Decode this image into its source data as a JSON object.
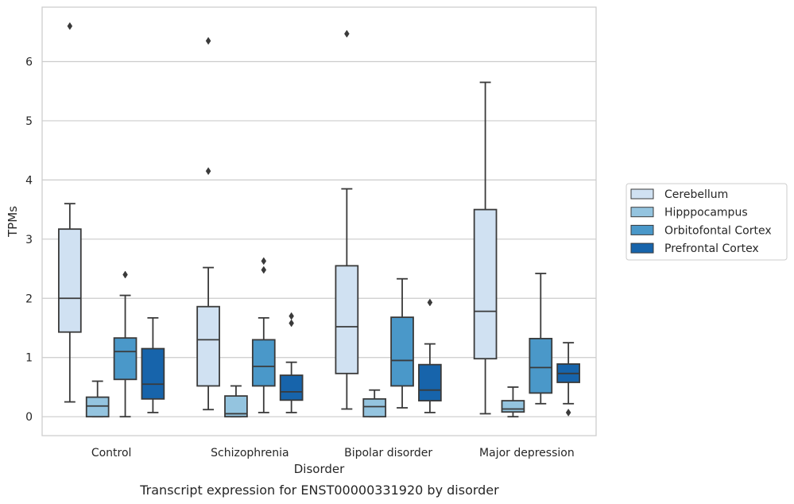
{
  "chart_data": {
    "type": "box",
    "title": "",
    "caption": "Transcript expression for ENST00000331920 by disorder",
    "xlabel": "Disorder",
    "ylabel": "TPMs",
    "ylim": [
      -0.32,
      6.92
    ],
    "yticks": [
      "0",
      "1",
      "2",
      "3",
      "4",
      "5",
      "6"
    ],
    "grid": "horizontal",
    "legend_position": "right",
    "categories": [
      "Control",
      "Schizophrenia",
      "Bipolar disorder",
      "Major depression"
    ],
    "series": [
      {
        "name": "Cerebellum",
        "color": "#d0e1f2",
        "boxes": [
          {
            "whislo": 0.25,
            "q1": 1.43,
            "med": 2.0,
            "q3": 3.17,
            "whishi": 3.6,
            "fliers": [
              6.6
            ]
          },
          {
            "whislo": 0.12,
            "q1": 0.52,
            "med": 1.3,
            "q3": 1.86,
            "whishi": 2.52,
            "fliers": [
              4.15,
              6.35
            ]
          },
          {
            "whislo": 0.13,
            "q1": 0.73,
            "med": 1.52,
            "q3": 2.55,
            "whishi": 3.85,
            "fliers": [
              6.47
            ]
          },
          {
            "whislo": 0.05,
            "q1": 0.98,
            "med": 1.78,
            "q3": 3.5,
            "whishi": 5.65,
            "fliers": []
          }
        ]
      },
      {
        "name": "Hipppocampus",
        "color": "#94c4df",
        "boxes": [
          {
            "whislo": 0.0,
            "q1": 0.0,
            "med": 0.18,
            "q3": 0.33,
            "whishi": 0.6,
            "fliers": []
          },
          {
            "whislo": 0.0,
            "q1": 0.0,
            "med": 0.05,
            "q3": 0.35,
            "whishi": 0.52,
            "fliers": []
          },
          {
            "whislo": 0.0,
            "q1": 0.0,
            "med": 0.17,
            "q3": 0.3,
            "whishi": 0.45,
            "fliers": []
          },
          {
            "whislo": 0.0,
            "q1": 0.08,
            "med": 0.13,
            "q3": 0.27,
            "whishi": 0.5,
            "fliers": []
          }
        ]
      },
      {
        "name": "Orbitofontal Cortex",
        "color": "#4a98c9",
        "boxes": [
          {
            "whislo": 0.0,
            "q1": 0.63,
            "med": 1.1,
            "q3": 1.33,
            "whishi": 2.05,
            "fliers": [
              2.4
            ]
          },
          {
            "whislo": 0.07,
            "q1": 0.52,
            "med": 0.85,
            "q3": 1.3,
            "whishi": 1.67,
            "fliers": [
              2.48,
              2.63
            ]
          },
          {
            "whislo": 0.15,
            "q1": 0.52,
            "med": 0.95,
            "q3": 1.68,
            "whishi": 2.33,
            "fliers": []
          },
          {
            "whislo": 0.22,
            "q1": 0.4,
            "med": 0.83,
            "q3": 1.32,
            "whishi": 2.42,
            "fliers": []
          }
        ]
      },
      {
        "name": "Prefrontal Cortex",
        "color": "#1764ab",
        "boxes": [
          {
            "whislo": 0.07,
            "q1": 0.3,
            "med": 0.55,
            "q3": 1.15,
            "whishi": 1.67,
            "fliers": []
          },
          {
            "whislo": 0.07,
            "q1": 0.28,
            "med": 0.42,
            "q3": 0.7,
            "whishi": 0.92,
            "fliers": [
              1.58,
              1.7
            ]
          },
          {
            "whislo": 0.07,
            "q1": 0.27,
            "med": 0.45,
            "q3": 0.88,
            "whishi": 1.23,
            "fliers": [
              1.93
            ]
          },
          {
            "whislo": 0.22,
            "q1": 0.58,
            "med": 0.73,
            "q3": 0.89,
            "whishi": 1.25,
            "fliers": [
              0.07
            ]
          }
        ]
      }
    ]
  }
}
